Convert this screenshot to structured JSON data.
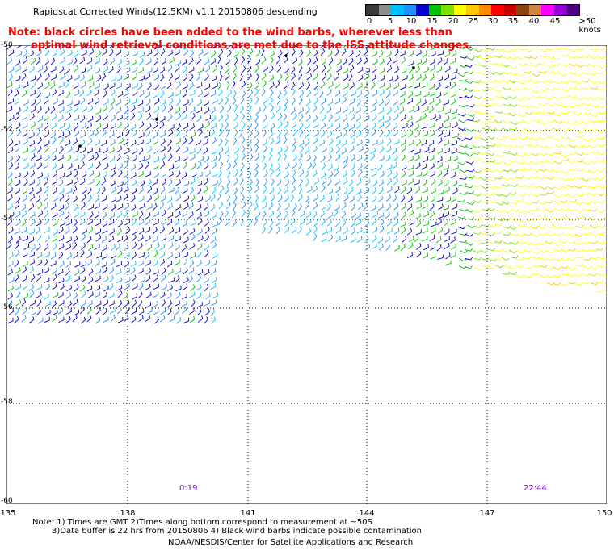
{
  "title": "Rapidscat Corrected Winds(12.5KM) v1.1 20150806 descending",
  "note_line1": "Note: black circles have been added to the wind barbs, wherever less than",
  "note_line2": "optimal wind retrieval conditions are met due to the ISS attitude changes.",
  "colorbar": {
    "colors": [
      "#3c3c3c",
      "#8c8c8c",
      "#00bfff",
      "#1e90ff",
      "#0000cd",
      "#00c000",
      "#7fe000",
      "#ffff00",
      "#ffc800",
      "#ff8c00",
      "#ff0000",
      "#c80000",
      "#8b4513",
      "#cd853f",
      "#ff00ff",
      "#9400d3",
      "#4b0082"
    ],
    "labels": [
      "0",
      "5",
      "10",
      "15",
      "20",
      "25",
      "30",
      "35",
      "40",
      "45",
      ">50 knots"
    ]
  },
  "lat_labels": [
    "-50",
    "-52",
    "-54",
    "-56",
    "-58",
    "-60"
  ],
  "lon_labels": [
    "135",
    "138",
    "141",
    "144",
    "147",
    "150"
  ],
  "times": [
    "0:19",
    "22:44"
  ],
  "footer_note1": "Note: 1) Times are GMT 2)Times along bottom correspond to measurement at ~50S",
  "footer_note2": "3)Data buffer is 22 hrs from 20150806 4) Black wind barbs indicate possible contamination",
  "credit": "NOAA/NESDIS/Center for Satellite Applications and Research"
}
